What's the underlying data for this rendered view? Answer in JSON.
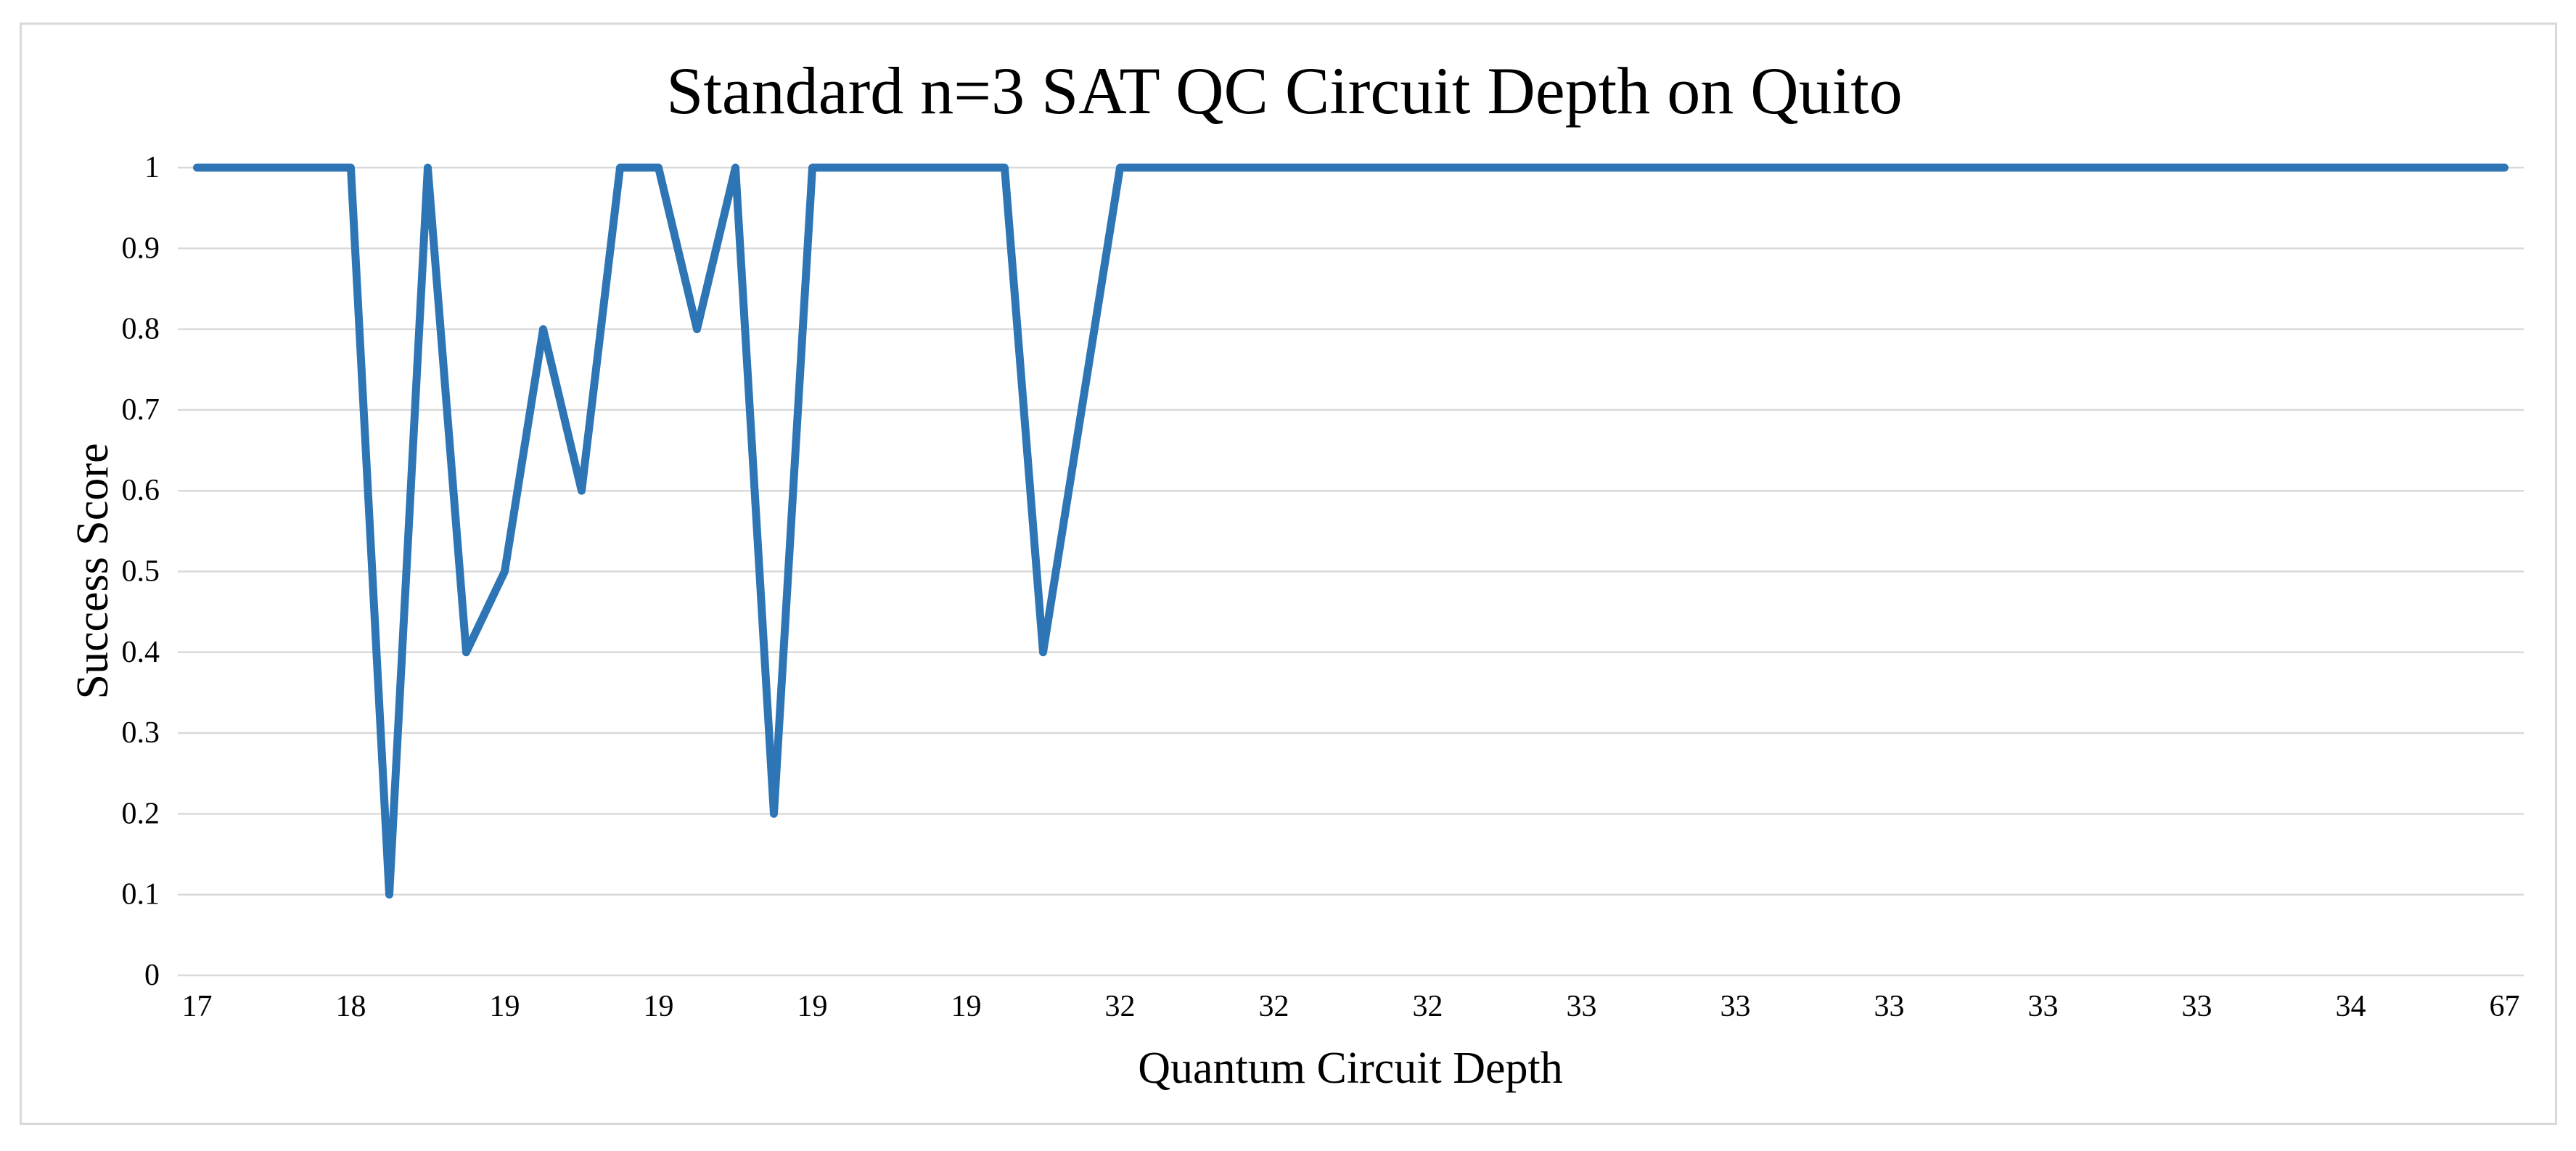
{
  "chart_data": {
    "type": "line",
    "title": "Standard n=3 SAT QC Circuit Depth on Quito",
    "xlabel": "Quantum Circuit Depth",
    "ylabel": "Success Score",
    "series_name": "Success Score",
    "num_points": 61,
    "x_tick_labels_shown": [
      "17",
      "18",
      "19",
      "19",
      "19",
      "19",
      "32",
      "32",
      "32",
      "33",
      "33",
      "33",
      "33",
      "33",
      "34",
      "67"
    ],
    "x_label_every_n_points": 4,
    "values": [
      1,
      1,
      1,
      1,
      1,
      0.1,
      1,
      0.4,
      0.5,
      0.8,
      0.6,
      1,
      1,
      0.8,
      1,
      0.2,
      1,
      1,
      1,
      1,
      1,
      1,
      0.4,
      0.7,
      1,
      1,
      1,
      1,
      1,
      1,
      1,
      1,
      1,
      1,
      1,
      1,
      1,
      1,
      1,
      1,
      1,
      1,
      1,
      1,
      1,
      1,
      1,
      1,
      1,
      1,
      1,
      1,
      1,
      1,
      1,
      1,
      1,
      1,
      1,
      1,
      1
    ],
    "y_tick_labels": [
      "0",
      "0.1",
      "0.2",
      "0.3",
      "0.4",
      "0.5",
      "0.6",
      "0.7",
      "0.8",
      "0.9",
      "1"
    ],
    "ylim": [
      0,
      1
    ],
    "y_tick_step": 0.1,
    "grid": "horizontal-only",
    "legend": "none",
    "colors": {
      "line": "#2E75B6",
      "gridline": "#D9D9D9",
      "frame_border": "#D9D9D9",
      "text": "#000000",
      "background": "#FFFFFF"
    }
  }
}
